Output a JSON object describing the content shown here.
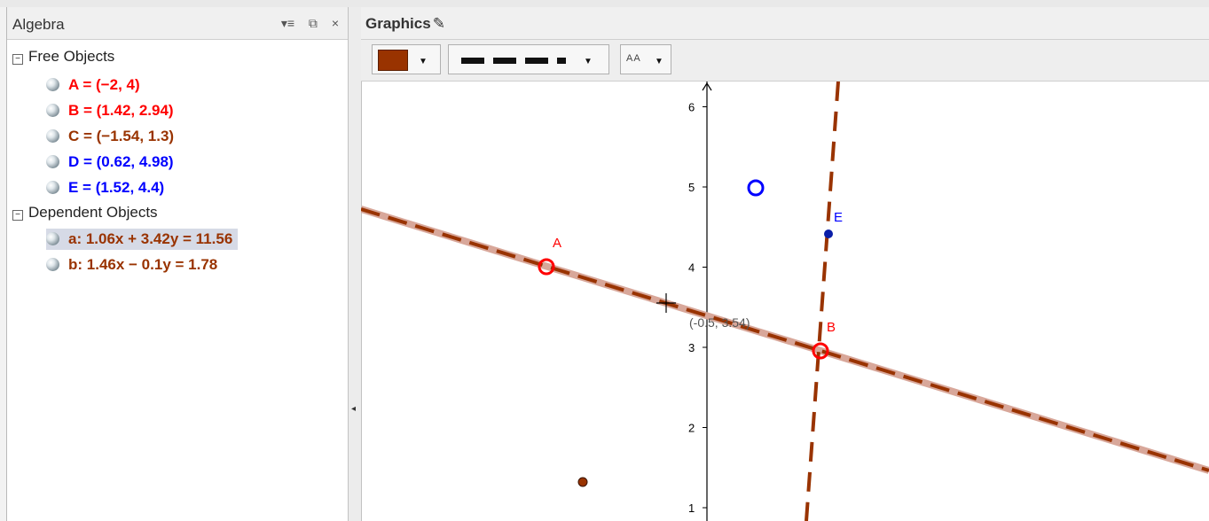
{
  "algebra": {
    "title": "Algebra",
    "header_icons": [
      "menu-icon",
      "undock-icon",
      "close-icon"
    ],
    "close_glyph": "×",
    "groups": {
      "free": "Free Objects",
      "dependent": "Dependent Objects"
    },
    "free_objects": [
      {
        "text": "A = (−2, 4)",
        "color": "#ff0000"
      },
      {
        "text": "B = (1.42, 2.94)",
        "color": "#ff0000"
      },
      {
        "text": "C = (−1.54, 1.3)",
        "color": "#993300"
      },
      {
        "text": "D = (0.62, 4.98)",
        "color": "#0000ff"
      },
      {
        "text": "E = (1.52, 4.4)",
        "color": "#0000ff"
      }
    ],
    "dependent_objects": [
      {
        "text": "a: 1.06x + 3.42y = 11.56",
        "color": "#993300",
        "selected": true
      },
      {
        "text": "b: 1.46x − 0.1y = 1.78",
        "color": "#993300",
        "selected": false
      }
    ]
  },
  "graphics": {
    "title": "Graphics",
    "pen_glyph": "✎",
    "toolbar": {
      "color": "#993300",
      "text_size_label": "AA"
    },
    "y_tick_labels": [
      "1",
      "2",
      "3",
      "4",
      "5",
      "6"
    ],
    "point_labels": {
      "A": "A",
      "B": "B",
      "E": "E"
    },
    "coordinate_readout": "(-0.5, 3.54)"
  }
}
